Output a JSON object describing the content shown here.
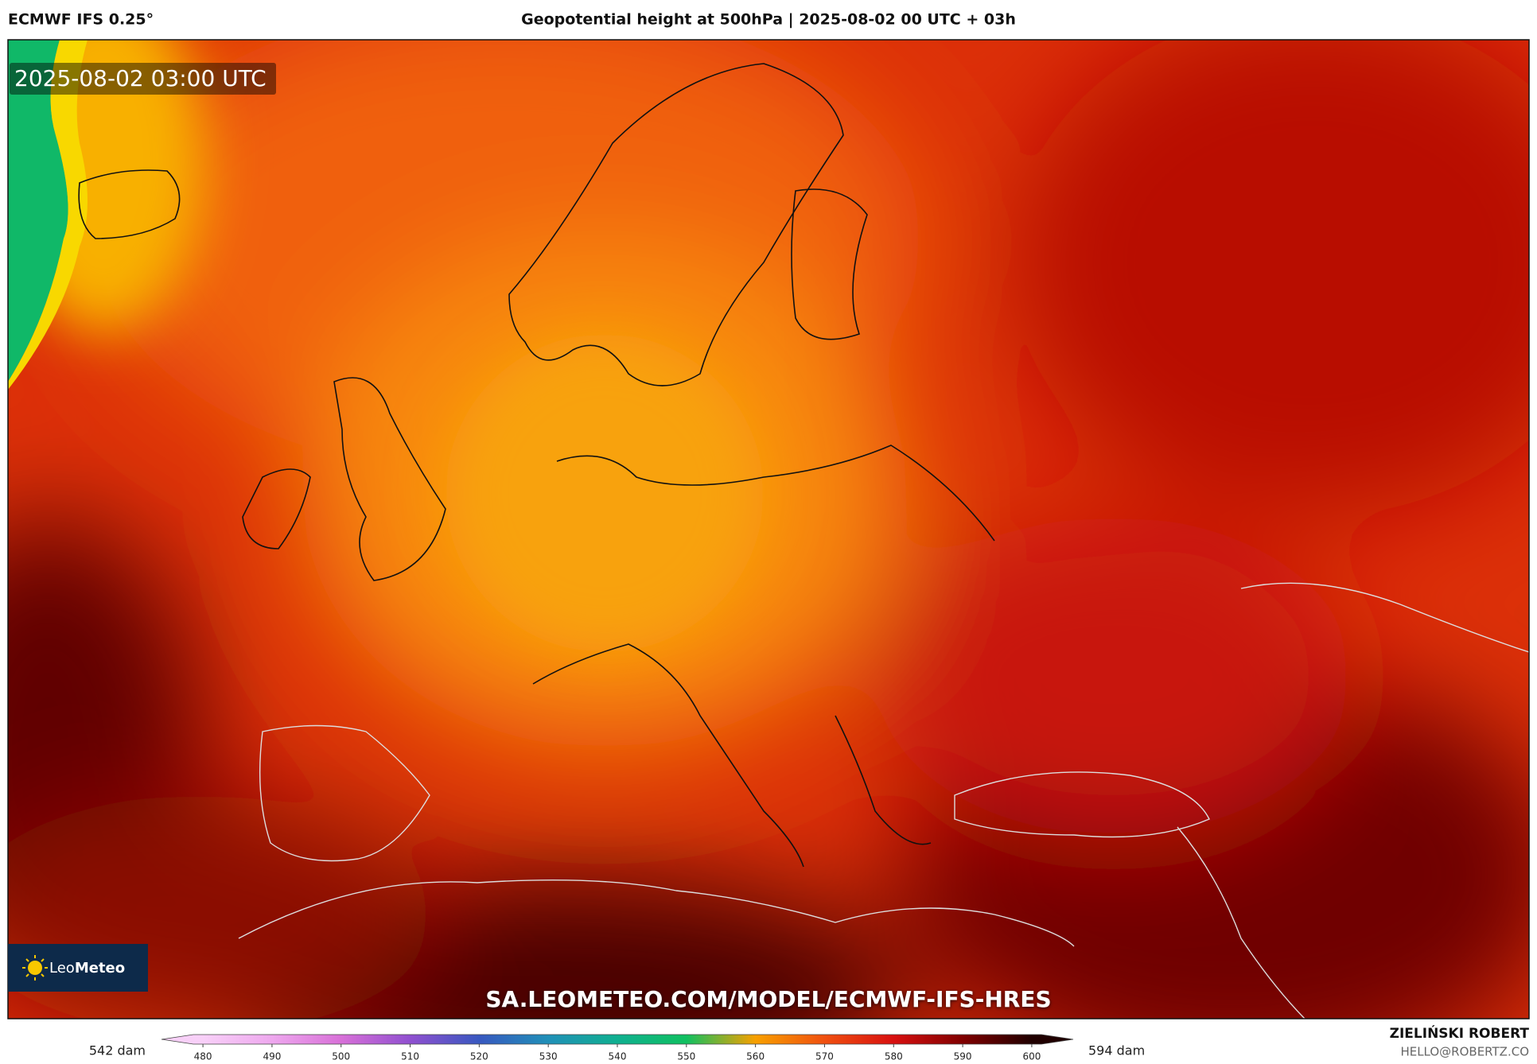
{
  "header": {
    "model": "ECMWF IFS 0.25°",
    "title": "Geopotential height at 500hPa | 2025-08-02 00 UTC + 03h"
  },
  "map": {
    "timestamp": "2025-08-02 03:00 UTC",
    "logo": {
      "prefix": "Leo",
      "suffix": "Meteo"
    },
    "url": "SA.LEOMETEO.COM/MODEL/ECMWF-IFS-HRES"
  },
  "colorbar": {
    "min_label": "542 dam",
    "max_label": "594 dam",
    "vlim": [
      474,
      606
    ],
    "ticks": [
      480,
      490,
      500,
      510,
      520,
      530,
      540,
      550,
      560,
      570,
      580,
      590,
      600
    ],
    "colors": [
      "#f8d0f8",
      "#eea8ee",
      "#d870d8",
      "#9050d0",
      "#3858c0",
      "#2090b8",
      "#10b090",
      "#10c060",
      "#f8a000",
      "#f05010",
      "#d81010",
      "#800000",
      "#200000"
    ]
  },
  "footer": {
    "author": "ZIELIŃSKI ROBERT",
    "email": "HELLO@ROBERTZ.CO"
  }
}
